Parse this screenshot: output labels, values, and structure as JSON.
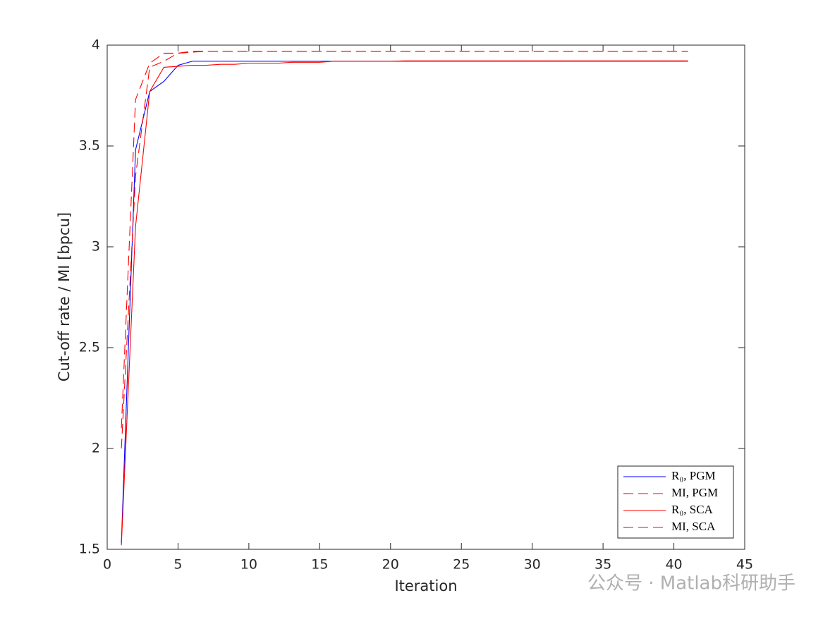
{
  "chart_data": {
    "type": "line",
    "xlabel": "Iteration",
    "ylabel": "Cut-off rate / MI [bpcu]",
    "x": [
      1,
      2,
      3,
      4,
      5,
      6,
      7,
      8,
      9,
      10,
      11,
      12,
      13,
      14,
      15,
      16,
      17,
      18,
      19,
      20,
      21,
      22,
      23,
      24,
      25,
      26,
      27,
      28,
      29,
      30,
      31,
      32,
      33,
      34,
      35,
      36,
      37,
      38,
      39,
      40,
      41
    ],
    "series": [
      {
        "name": "R₀, PGM",
        "color": "#0000ff",
        "style": "solid",
        "values": [
          1.53,
          3.48,
          3.77,
          3.82,
          3.9,
          3.92,
          3.92,
          3.92,
          3.92,
          3.92,
          3.92,
          3.92,
          3.92,
          3.92,
          3.92,
          3.92,
          3.92,
          3.92,
          3.92,
          3.92,
          3.92,
          3.92,
          3.92,
          3.92,
          3.92,
          3.92,
          3.92,
          3.92,
          3.92,
          3.92,
          3.92,
          3.92,
          3.92,
          3.92,
          3.92,
          3.92,
          3.92,
          3.92,
          3.92,
          3.92,
          3.92
        ]
      },
      {
        "name": "MI, PGM",
        "color": "#ff0000",
        "style": "dashed",
        "values": [
          2.1,
          3.73,
          3.91,
          3.96,
          3.96,
          3.97,
          3.97,
          3.97,
          3.97,
          3.97,
          3.97,
          3.97,
          3.97,
          3.97,
          3.97,
          3.97,
          3.97,
          3.97,
          3.97,
          3.97,
          3.97,
          3.97,
          3.97,
          3.97,
          3.97,
          3.97,
          3.97,
          3.97,
          3.97,
          3.97,
          3.97,
          3.97,
          3.97,
          3.97,
          3.97,
          3.97,
          3.97,
          3.97,
          3.97,
          3.97,
          3.97
        ]
      },
      {
        "name": "R₀, SCA",
        "color": "#ff0000",
        "style": "solid",
        "values": [
          1.52,
          3.1,
          3.77,
          3.89,
          3.895,
          3.9,
          3.9,
          3.905,
          3.905,
          3.91,
          3.91,
          3.91,
          3.915,
          3.915,
          3.915,
          3.92,
          3.92,
          3.92,
          3.92,
          3.92,
          3.922,
          3.922,
          3.922,
          3.922,
          3.922,
          3.922,
          3.922,
          3.922,
          3.922,
          3.922,
          3.922,
          3.922,
          3.922,
          3.922,
          3.922,
          3.922,
          3.922,
          3.922,
          3.922,
          3.922,
          3.922
        ]
      },
      {
        "name": "MI, SCA",
        "color": "#ff0000",
        "style": "dashed",
        "values": [
          2.0,
          3.35,
          3.89,
          3.92,
          3.96,
          3.965,
          3.97,
          3.97,
          3.97,
          3.97,
          3.97,
          3.97,
          3.97,
          3.97,
          3.97,
          3.97,
          3.97,
          3.97,
          3.97,
          3.97,
          3.97,
          3.97,
          3.97,
          3.97,
          3.97,
          3.97,
          3.97,
          3.97,
          3.97,
          3.97,
          3.97,
          3.97,
          3.97,
          3.97,
          3.97,
          3.97,
          3.97,
          3.97,
          3.97,
          3.97,
          3.97
        ]
      }
    ],
    "xlim": [
      0,
      45
    ],
    "xticks": [
      0,
      5,
      10,
      15,
      20,
      25,
      30,
      35,
      40,
      45
    ],
    "ylim": [
      1.5,
      4
    ],
    "yticks": [
      1.5,
      2,
      2.5,
      3,
      3.5,
      4
    ],
    "grid": false,
    "legend": "lower right"
  },
  "watermark": "公众号 · Matlab科研助手"
}
